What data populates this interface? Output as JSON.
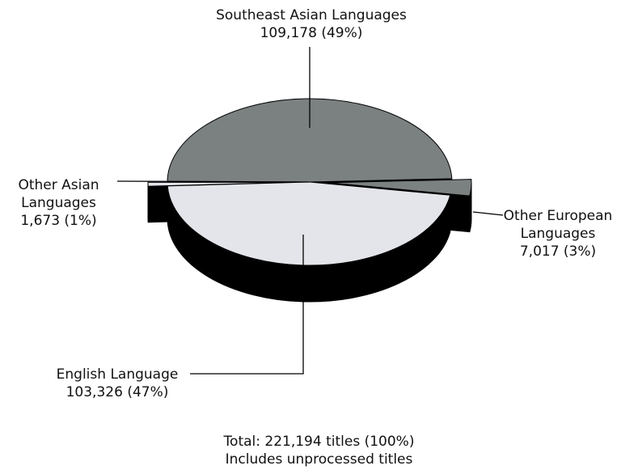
{
  "chart_data": {
    "type": "pie",
    "categories": [
      "Southeast Asian Languages",
      "Other European Languages",
      "English Language",
      "Other Asian Languages"
    ],
    "values": [
      109178,
      7017,
      103326,
      1673
    ],
    "value_labels": [
      "109,178 (49%)",
      "7,017 (3%)",
      "103,326 (47%)",
      "1,673 (1%)"
    ],
    "colors": [
      "#7b8181",
      "#7b8181",
      "#e3e5ea",
      "#e3e5ea"
    ],
    "exploded": [
      false,
      true,
      false,
      true
    ],
    "annotations": [
      "Total: 221,194 titles (100%)",
      "Includes unprocessed titles"
    ]
  }
}
